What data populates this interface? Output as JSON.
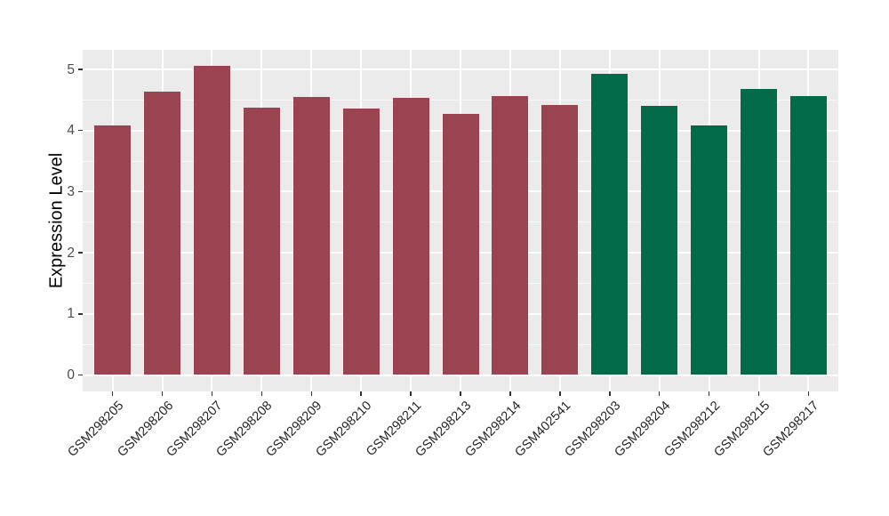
{
  "figure": {
    "background": "#FFFFFF",
    "panel_background": "#EBEBEB",
    "grid_major_color": "#FFFFFF",
    "grid_minor_color": "#FFFFFF",
    "tick_color": "#333333",
    "y_axis_text_color": "#4D4D4D",
    "x_axis_text_color": "#262626",
    "axis_title_color": "#000000"
  },
  "chart_data": {
    "type": "bar",
    "title": "",
    "xlabel": "",
    "ylabel": "Expression Level",
    "ylim": [
      -0.27,
      5.32
    ],
    "yticks": [
      0,
      1,
      2,
      3,
      4,
      5
    ],
    "grid": true,
    "legend": "none",
    "bar_color_group_1": "#9A4451",
    "bar_color_group_2": "#046B4A",
    "categories": [
      "GSM298205",
      "GSM298206",
      "GSM298207",
      "GSM298208",
      "GSM298209",
      "GSM298210",
      "GSM298211",
      "GSM298213",
      "GSM298214",
      "GSM402541",
      "GSM298203",
      "GSM298204",
      "GSM298212",
      "GSM298215",
      "GSM298217"
    ],
    "values": [
      4.08,
      4.64,
      5.06,
      4.38,
      4.55,
      4.36,
      4.53,
      4.27,
      4.56,
      4.42,
      4.93,
      4.4,
      4.08,
      4.68,
      4.56
    ],
    "colors": [
      "#9A4451",
      "#9A4451",
      "#9A4451",
      "#9A4451",
      "#9A4451",
      "#9A4451",
      "#9A4451",
      "#9A4451",
      "#9A4451",
      "#9A4451",
      "#046B4A",
      "#046B4A",
      "#046B4A",
      "#046B4A",
      "#046B4A"
    ]
  }
}
